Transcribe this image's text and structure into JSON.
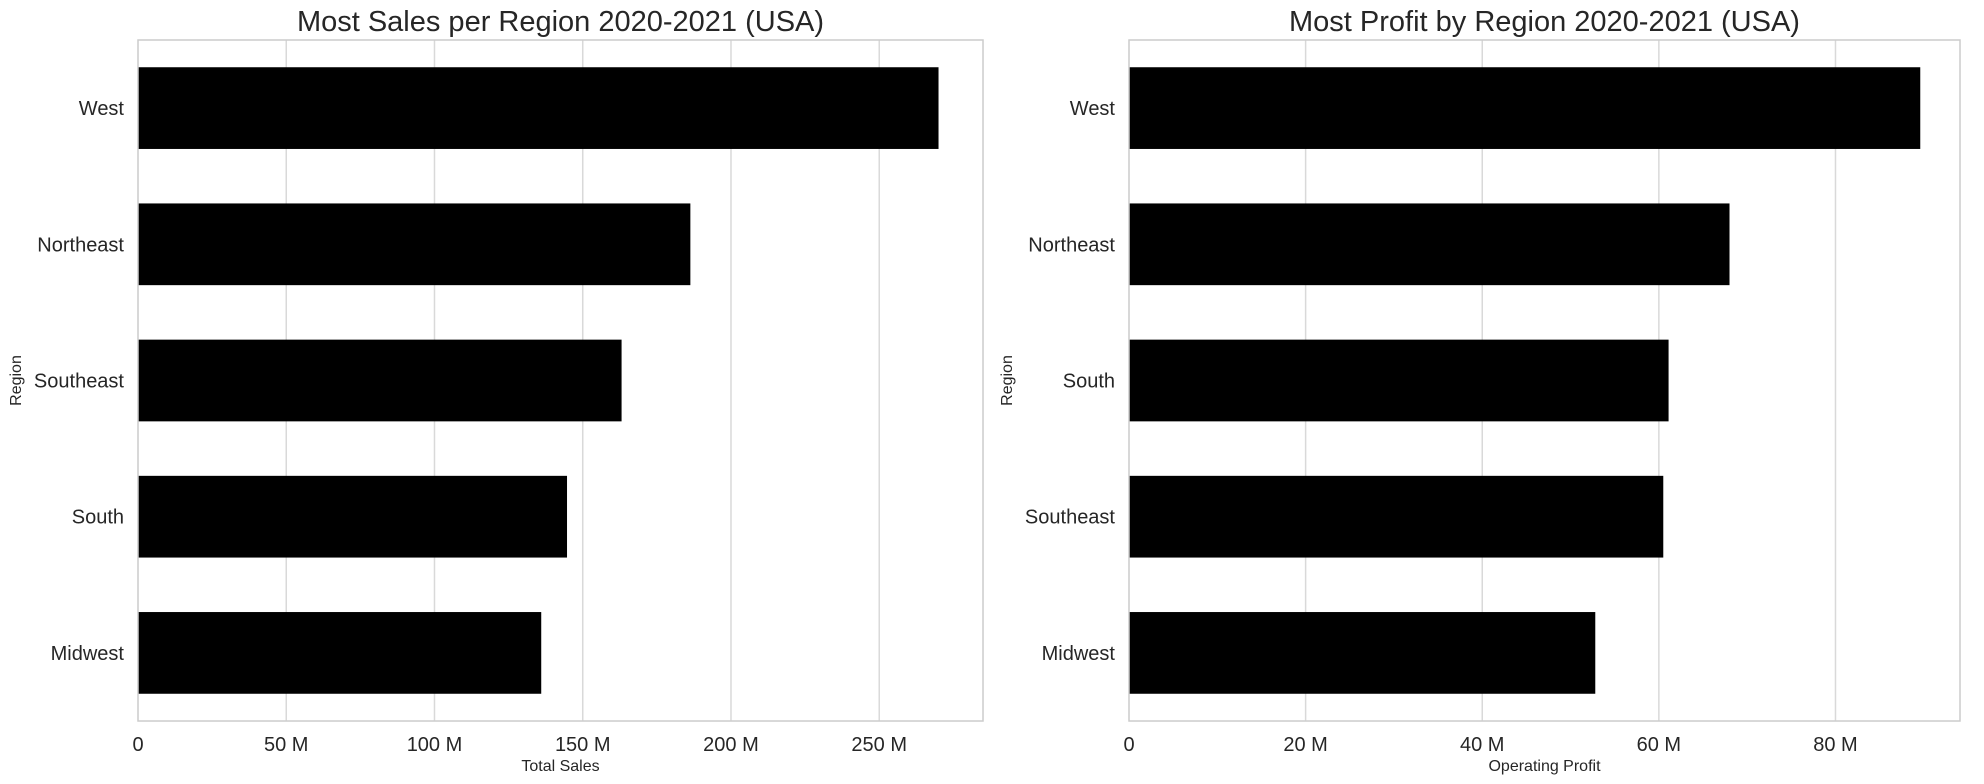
{
  "chart_data": [
    {
      "type": "bar",
      "orientation": "horizontal",
      "title": "Most Sales per Region 2020-2021 (USA)",
      "xlabel": "Total Sales",
      "ylabel": "Region",
      "categories": [
        "West",
        "Northeast",
        "Southeast",
        "South",
        "Midwest"
      ],
      "values": [
        270000000,
        186300000,
        163100000,
        144700000,
        136000000
      ],
      "xlim": [
        0,
        285000000
      ],
      "xticks": [
        0,
        50000000,
        100000000,
        150000000,
        200000000,
        250000000
      ],
      "xtick_labels": [
        "0",
        "50 M",
        "100 M",
        "150 M",
        "200 M",
        "250 M"
      ],
      "bar_color": "#000000",
      "grid": "vertical"
    },
    {
      "type": "bar",
      "orientation": "horizontal",
      "title": "Most Profit by Region 2020-2021 (USA)",
      "xlabel": "Operating Profit",
      "ylabel": "Region",
      "categories": [
        "West",
        "Northeast",
        "South",
        "Southeast",
        "Midwest"
      ],
      "values": [
        89600000,
        68000000,
        61100000,
        60500000,
        52800000
      ],
      "xlim": [
        0,
        94100000
      ],
      "xticks": [
        0,
        20000000,
        40000000,
        60000000,
        80000000
      ],
      "xtick_labels": [
        "0",
        "20 M",
        "40 M",
        "60 M",
        "80 M"
      ],
      "bar_color": "#000000",
      "grid": "vertical"
    }
  ]
}
